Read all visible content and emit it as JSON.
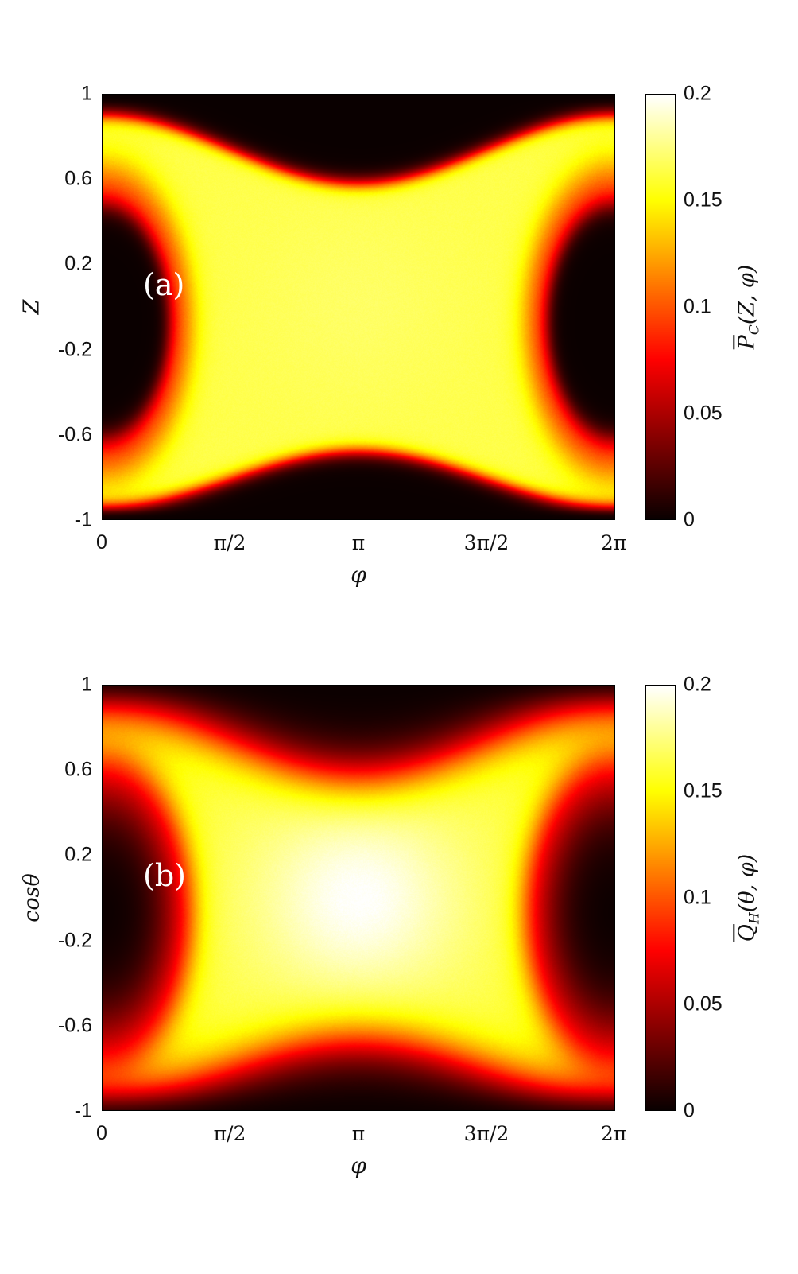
{
  "chart_data": [
    {
      "type": "heatmap",
      "panel_label": "(a)",
      "xlabel": "φ",
      "ylabel": "Z",
      "colorbar_label": {
        "base": "P",
        "sub": "C",
        "args": "(Z, φ)",
        "overbar": true
      },
      "x_ticks": [
        "0",
        "π/2",
        "π",
        "3π/2",
        "2π"
      ],
      "x_tick_values": [
        0,
        1.5708,
        3.1416,
        4.7124,
        6.2832
      ],
      "y_ticks": [
        "1",
        "0.6",
        "0.2",
        "-0.2",
        "-0.6",
        "-1"
      ],
      "y_tick_values": [
        1,
        0.6,
        0.2,
        -0.2,
        -0.6,
        -1
      ],
      "colorbar_ticks": [
        "0.2",
        "0.15",
        "0.1",
        "0.05",
        "0"
      ],
      "colorbar_tick_values": [
        0.2,
        0.15,
        0.1,
        0.05,
        0
      ],
      "xlim": [
        0,
        6.2832
      ],
      "ylim": [
        -1,
        1
      ],
      "clim": [
        0,
        0.2
      ],
      "colormap": "hot",
      "pattern": {
        "shell_inner_radius": 0.55,
        "shell_outer_radius": 0.97,
        "band_peak": 0.165,
        "center_peak": 0.17,
        "smoothness": 0.015
      }
    },
    {
      "type": "heatmap",
      "panel_label": "(b)",
      "xlabel": "φ",
      "ylabel": "cosθ",
      "colorbar_label": {
        "base": "Q",
        "sub": "H",
        "args": "(θ, φ)",
        "overbar": true
      },
      "x_ticks": [
        "0",
        "π/2",
        "π",
        "3π/2",
        "2π"
      ],
      "x_tick_values": [
        0,
        1.5708,
        3.1416,
        4.7124,
        6.2832
      ],
      "y_ticks": [
        "1",
        "0.6",
        "0.2",
        "-0.2",
        "-0.6",
        "-1"
      ],
      "y_tick_values": [
        1,
        0.6,
        0.2,
        -0.2,
        -0.6,
        -1
      ],
      "colorbar_ticks": [
        "0.2",
        "0.15",
        "0.1",
        "0.05",
        "0"
      ],
      "colorbar_tick_values": [
        0.2,
        0.15,
        0.1,
        0.05,
        0
      ],
      "xlim": [
        0,
        6.2832
      ],
      "ylim": [
        -1,
        1
      ],
      "clim": [
        0,
        0.2
      ],
      "colormap": "hot",
      "pattern": {
        "shell_inner_radius": 0.55,
        "shell_outer_radius": 0.97,
        "band_peak": 0.165,
        "center_peak": 0.2,
        "smoothness": 0.05
      }
    }
  ]
}
